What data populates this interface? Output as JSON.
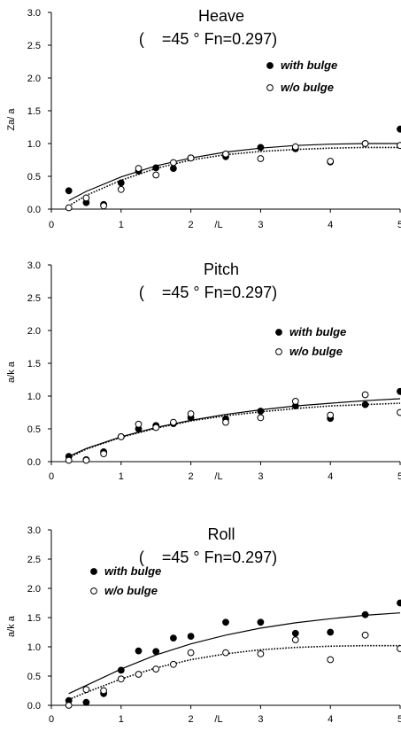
{
  "chart_data": [
    {
      "type": "scatter",
      "title": "Heave",
      "subtitle": "(    =45 ° Fn=0.297)",
      "ylabel": "Za/   a",
      "xlabel": "/L",
      "xlim": [
        0,
        5
      ],
      "ylim": [
        0,
        3
      ],
      "x_ticks": [
        "0",
        "1",
        "2",
        "3",
        "4",
        "5"
      ],
      "y_ticks": [
        "0.0",
        "0.5",
        "1.0",
        "1.5",
        "2.0",
        "2.5",
        "3.0"
      ],
      "legend_position": "upper-right",
      "grid": false,
      "series": [
        {
          "name": "with bulge",
          "marker": "filled-circle",
          "line": "solid",
          "points": [
            [
              0.25,
              0.28
            ],
            [
              0.5,
              0.1
            ],
            [
              0.75,
              0.07
            ],
            [
              1.0,
              0.4
            ],
            [
              1.25,
              0.58
            ],
            [
              1.5,
              0.63
            ],
            [
              1.75,
              0.62
            ],
            [
              2.0,
              0.78
            ],
            [
              2.5,
              0.8
            ],
            [
              3.0,
              0.94
            ],
            [
              3.5,
              0.92
            ],
            [
              4.0,
              0.72
            ],
            [
              4.5,
              1.0
            ],
            [
              5.0,
              1.22
            ]
          ],
          "curve": [
            [
              0.25,
              0.13
            ],
            [
              0.5,
              0.27
            ],
            [
              1.0,
              0.49
            ],
            [
              1.5,
              0.66
            ],
            [
              2.0,
              0.78
            ],
            [
              2.5,
              0.87
            ],
            [
              3.0,
              0.93
            ],
            [
              3.5,
              0.97
            ],
            [
              4.0,
              0.99
            ],
            [
              4.5,
              1.0
            ],
            [
              5.0,
              1.0
            ]
          ]
        },
        {
          "name": "w/o bulge",
          "marker": "open-circle",
          "line": "dotted",
          "points": [
            [
              0.25,
              0.02
            ],
            [
              0.5,
              0.17
            ],
            [
              0.75,
              0.05
            ],
            [
              1.0,
              0.3
            ],
            [
              1.25,
              0.62
            ],
            [
              1.5,
              0.52
            ],
            [
              1.75,
              0.71
            ],
            [
              2.0,
              0.78
            ],
            [
              2.5,
              0.84
            ],
            [
              3.0,
              0.77
            ],
            [
              3.5,
              0.95
            ],
            [
              4.0,
              0.73
            ],
            [
              4.5,
              1.0
            ],
            [
              5.0,
              0.97
            ]
          ],
          "curve": [
            [
              0.25,
              0.05
            ],
            [
              0.5,
              0.21
            ],
            [
              1.0,
              0.44
            ],
            [
              1.5,
              0.62
            ],
            [
              2.0,
              0.75
            ],
            [
              2.5,
              0.83
            ],
            [
              3.0,
              0.88
            ],
            [
              3.5,
              0.91
            ],
            [
              4.0,
              0.93
            ],
            [
              4.5,
              0.94
            ],
            [
              5.0,
              0.94
            ]
          ]
        }
      ]
    },
    {
      "type": "scatter",
      "title": "Pitch",
      "subtitle": "(    =45 ° Fn=0.297)",
      "ylabel": "a/k   a",
      "xlabel": "/L",
      "xlim": [
        0,
        5
      ],
      "ylim": [
        0,
        3
      ],
      "x_ticks": [
        "0",
        "1",
        "2",
        "3",
        "4",
        "5"
      ],
      "y_ticks": [
        "0.0",
        "0.5",
        "1.0",
        "1.5",
        "2.0",
        "2.5",
        "3.0"
      ],
      "legend_position": "right",
      "grid": false,
      "series": [
        {
          "name": "with bulge",
          "marker": "filled-circle",
          "line": "solid",
          "points": [
            [
              0.25,
              0.08
            ],
            [
              0.5,
              0.03
            ],
            [
              0.75,
              0.15
            ],
            [
              1.0,
              0.38
            ],
            [
              1.25,
              0.5
            ],
            [
              1.5,
              0.55
            ],
            [
              1.75,
              0.58
            ],
            [
              2.0,
              0.67
            ],
            [
              2.5,
              0.65
            ],
            [
              3.0,
              0.77
            ],
            [
              3.5,
              0.85
            ],
            [
              4.0,
              0.66
            ],
            [
              4.5,
              0.87
            ],
            [
              5.0,
              1.07
            ]
          ],
          "curve": [
            [
              0.25,
              0.08
            ],
            [
              0.5,
              0.2
            ],
            [
              1.0,
              0.38
            ],
            [
              1.5,
              0.52
            ],
            [
              2.0,
              0.63
            ],
            [
              2.5,
              0.72
            ],
            [
              3.0,
              0.79
            ],
            [
              3.5,
              0.85
            ],
            [
              4.0,
              0.89
            ],
            [
              4.5,
              0.93
            ],
            [
              5.0,
              0.96
            ]
          ]
        },
        {
          "name": "w/o bulge",
          "marker": "open-circle",
          "line": "dotted",
          "points": [
            [
              0.25,
              0.02
            ],
            [
              0.5,
              0.02
            ],
            [
              0.75,
              0.12
            ],
            [
              1.0,
              0.38
            ],
            [
              1.25,
              0.57
            ],
            [
              1.5,
              0.52
            ],
            [
              1.75,
              0.6
            ],
            [
              2.0,
              0.73
            ],
            [
              2.5,
              0.6
            ],
            [
              3.0,
              0.67
            ],
            [
              3.5,
              0.92
            ],
            [
              4.0,
              0.71
            ],
            [
              4.5,
              1.02
            ],
            [
              5.0,
              0.75
            ]
          ],
          "curve": [
            [
              0.25,
              0.06
            ],
            [
              0.5,
              0.19
            ],
            [
              1.0,
              0.37
            ],
            [
              1.5,
              0.51
            ],
            [
              2.0,
              0.62
            ],
            [
              2.5,
              0.7
            ],
            [
              3.0,
              0.76
            ],
            [
              3.5,
              0.81
            ],
            [
              4.0,
              0.85
            ],
            [
              4.5,
              0.87
            ],
            [
              5.0,
              0.89
            ]
          ]
        }
      ]
    },
    {
      "type": "scatter",
      "title": "Roll",
      "subtitle": "(    =45 ° Fn=0.297)",
      "ylabel": "a/k   a",
      "xlabel": "/L",
      "xlim": [
        0,
        5
      ],
      "ylim": [
        0,
        3
      ],
      "x_ticks": [
        "0",
        "1",
        "2",
        "3",
        "4",
        "5"
      ],
      "y_ticks": [
        "0.0",
        "0.5",
        "1.0",
        "1.5",
        "2.0",
        "2.5",
        "3.0"
      ],
      "legend_position": "left",
      "grid": false,
      "series": [
        {
          "name": "with bulge",
          "marker": "filled-circle",
          "line": "solid",
          "points": [
            [
              0.25,
              0.08
            ],
            [
              0.5,
              0.05
            ],
            [
              0.75,
              0.2
            ],
            [
              1.0,
              0.6
            ],
            [
              1.25,
              0.93
            ],
            [
              1.5,
              0.92
            ],
            [
              1.75,
              1.15
            ],
            [
              2.0,
              1.18
            ],
            [
              2.5,
              1.42
            ],
            [
              3.0,
              1.42
            ],
            [
              3.5,
              1.23
            ],
            [
              4.0,
              1.25
            ],
            [
              4.5,
              1.55
            ],
            [
              5.0,
              1.75
            ]
          ],
          "curve": [
            [
              0.25,
              0.2
            ],
            [
              0.5,
              0.34
            ],
            [
              1.0,
              0.62
            ],
            [
              1.5,
              0.86
            ],
            [
              2.0,
              1.05
            ],
            [
              2.5,
              1.2
            ],
            [
              3.0,
              1.32
            ],
            [
              3.5,
              1.41
            ],
            [
              4.0,
              1.48
            ],
            [
              4.5,
              1.54
            ],
            [
              5.0,
              1.58
            ]
          ]
        },
        {
          "name": "w/o bulge",
          "marker": "open-circle",
          "line": "dotted",
          "points": [
            [
              0.25,
              0.0
            ],
            [
              0.5,
              0.27
            ],
            [
              0.75,
              0.25
            ],
            [
              1.0,
              0.45
            ],
            [
              1.25,
              0.53
            ],
            [
              1.5,
              0.62
            ],
            [
              1.75,
              0.7
            ],
            [
              2.0,
              0.9
            ],
            [
              2.5,
              0.9
            ],
            [
              3.0,
              0.88
            ],
            [
              3.5,
              1.12
            ],
            [
              4.0,
              0.78
            ],
            [
              4.5,
              1.2
            ],
            [
              5.0,
              0.97
            ]
          ],
          "curve": [
            [
              0.25,
              0.1
            ],
            [
              0.5,
              0.22
            ],
            [
              1.0,
              0.45
            ],
            [
              1.5,
              0.64
            ],
            [
              2.0,
              0.78
            ],
            [
              2.5,
              0.88
            ],
            [
              3.0,
              0.95
            ],
            [
              3.5,
              0.99
            ],
            [
              4.0,
              1.01
            ],
            [
              4.5,
              1.02
            ],
            [
              5.0,
              1.02
            ]
          ]
        }
      ]
    }
  ]
}
